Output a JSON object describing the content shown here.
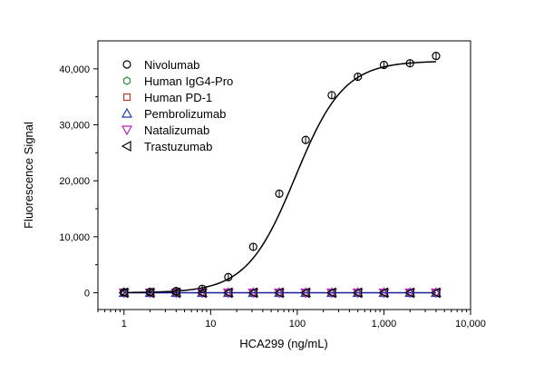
{
  "chart_data": {
    "type": "scatter",
    "xlabel": "HCA299 (ng/mL)",
    "ylabel": "Fluorescence Signal",
    "x_scale": "log",
    "xlim": [
      0.5,
      10000
    ],
    "ylim": [
      -3000,
      45000
    ],
    "x_ticks": [
      1,
      10,
      100,
      1000,
      10000
    ],
    "x_tick_labels": [
      "1",
      "10",
      "100",
      "1,000",
      "10,000"
    ],
    "y_ticks": [
      0,
      10000,
      20000,
      30000,
      40000
    ],
    "y_tick_labels": [
      "0",
      "10,000",
      "20,000",
      "30,000",
      "40,000"
    ],
    "grid": false,
    "legend_position": "top-left",
    "x": [
      1,
      2,
      4,
      8,
      16,
      31,
      62,
      125,
      250,
      500,
      1000,
      2000,
      4000
    ],
    "series": [
      {
        "name": "Nivolumab",
        "marker": "circle",
        "color": "#000000",
        "values": [
          100,
          150,
          300,
          700,
          2800,
          8200,
          17700,
          27300,
          35300,
          38600,
          40700,
          41000,
          42300
        ]
      },
      {
        "name": "Human IgG4-Pro",
        "marker": "hexagon",
        "color": "#2e8b3a",
        "values": [
          0,
          0,
          0,
          0,
          0,
          0,
          0,
          0,
          0,
          0,
          0,
          0,
          0
        ]
      },
      {
        "name": "Human PD-1",
        "marker": "square",
        "color": "#b03a2e",
        "values": [
          0,
          0,
          0,
          0,
          0,
          0,
          0,
          0,
          0,
          0,
          0,
          0,
          0
        ]
      },
      {
        "name": "Pembrolizumab",
        "marker": "triangle-up",
        "color": "#1f3fae",
        "values": [
          0,
          0,
          0,
          0,
          0,
          0,
          0,
          0,
          0,
          0,
          0,
          0,
          0
        ]
      },
      {
        "name": "Natalizumab",
        "marker": "triangle-down",
        "color": "#c020c0",
        "values": [
          0,
          0,
          0,
          0,
          0,
          0,
          0,
          0,
          0,
          0,
          0,
          0,
          0
        ]
      },
      {
        "name": "Trastuzumab",
        "marker": "triangle-left",
        "color": "#000000",
        "values": [
          0,
          0,
          0,
          0,
          0,
          0,
          0,
          0,
          0,
          0,
          0,
          0,
          0
        ]
      }
    ],
    "fit_curve": {
      "series": "Nivolumab",
      "model": "4PL",
      "bottom": 0,
      "top": 41400,
      "ec50": 95,
      "hill": 1.55,
      "color": "#000000"
    },
    "baseline_line": {
      "value": 0,
      "color": "#1a1aa0"
    }
  }
}
